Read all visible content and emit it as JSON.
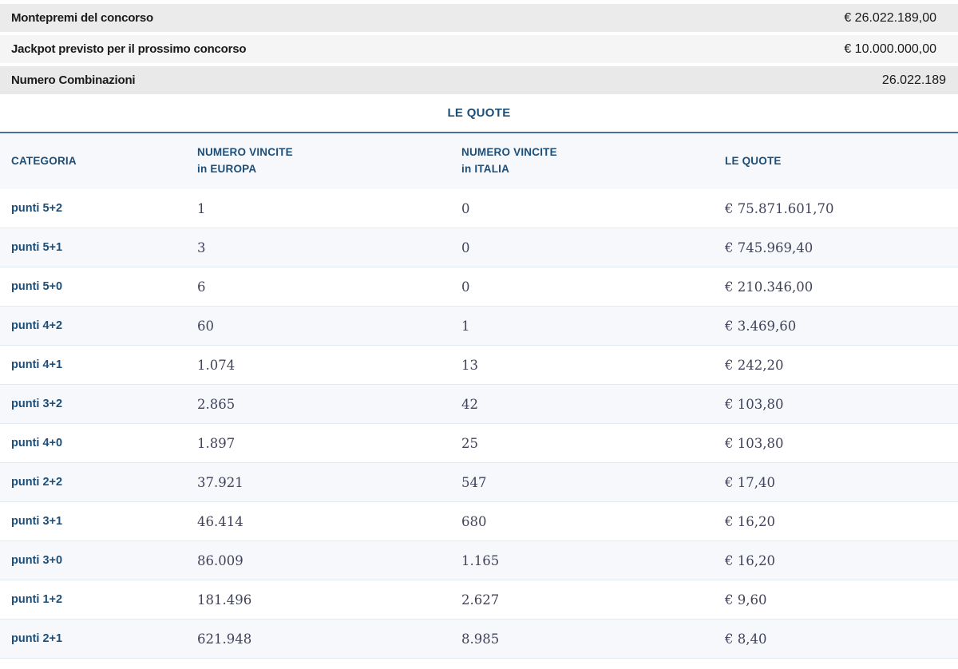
{
  "colors": {
    "accent_blue": "#1d4e78",
    "rule_blue": "#46709a",
    "table_alt_row_bg": "#f6f8fc",
    "summary_row_dark_bg": "#ebebeb",
    "summary_row_light_bg": "#f5f5f5",
    "number_text": "#41435a",
    "summary_text": "#1a1a1a"
  },
  "summary": {
    "rows": [
      {
        "label": "Montepremi del concorso",
        "value": "€ 26.022.189,00"
      },
      {
        "label": "Jackpot previsto per il prossimo concorso",
        "value": "€ 10.000.000,00"
      },
      {
        "label": "Numero Combinazioni",
        "value": "26.022.189"
      }
    ]
  },
  "quote": {
    "title": "LE QUOTE",
    "table": {
      "headers": [
        "CATEGORIA",
        "NUMERO VINCITE\nin EUROPA",
        "NUMERO VINCITE\nin ITALIA",
        "LE QUOTE"
      ],
      "rows": [
        {
          "categoria": "punti 5+2",
          "europa": "1",
          "italia": "0",
          "quota": "€ 75.871.601,70"
        },
        {
          "categoria": "punti 5+1",
          "europa": "3",
          "italia": "0",
          "quota": "€ 745.969,40"
        },
        {
          "categoria": "punti 5+0",
          "europa": "6",
          "italia": "0",
          "quota": "€ 210.346,00"
        },
        {
          "categoria": "punti 4+2",
          "europa": "60",
          "italia": "1",
          "quota": "€ 3.469,60"
        },
        {
          "categoria": "punti 4+1",
          "europa": "1.074",
          "italia": "13",
          "quota": "€ 242,20"
        },
        {
          "categoria": "punti 3+2",
          "europa": "2.865",
          "italia": "42",
          "quota": "€ 103,80"
        },
        {
          "categoria": "punti 4+0",
          "europa": "1.897",
          "italia": "25",
          "quota": "€ 103,80"
        },
        {
          "categoria": "punti 2+2",
          "europa": "37.921",
          "italia": "547",
          "quota": "€ 17,40"
        },
        {
          "categoria": "punti 3+1",
          "europa": "46.414",
          "italia": "680",
          "quota": "€ 16,20"
        },
        {
          "categoria": "punti 3+0",
          "europa": "86.009",
          "italia": "1.165",
          "quota": "€ 16,20"
        },
        {
          "categoria": "punti 1+2",
          "europa": "181.496",
          "italia": "2.627",
          "quota": "€ 9,60"
        },
        {
          "categoria": "punti 2+1",
          "europa": "621.948",
          "italia": "8.985",
          "quota": "€ 8,40"
        }
      ]
    }
  }
}
